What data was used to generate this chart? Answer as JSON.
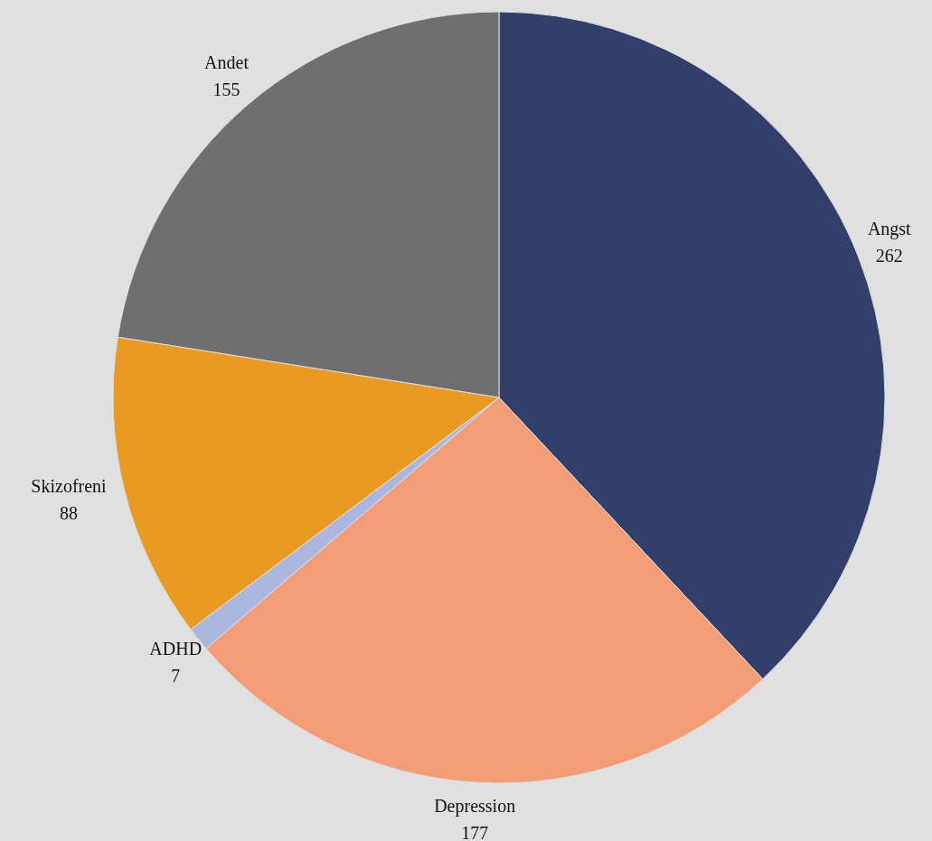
{
  "chart_data": {
    "type": "pie",
    "categories": [
      "Angst",
      "Depression",
      "ADHD",
      "Skizofreni",
      "Andet"
    ],
    "values": [
      262,
      177,
      7,
      88,
      155
    ],
    "colors": [
      "#323f6b",
      "#f29c78",
      "#abb7df",
      "#e99a22",
      "#6f6f6f"
    ],
    "data_labels": true,
    "legend": false
  }
}
